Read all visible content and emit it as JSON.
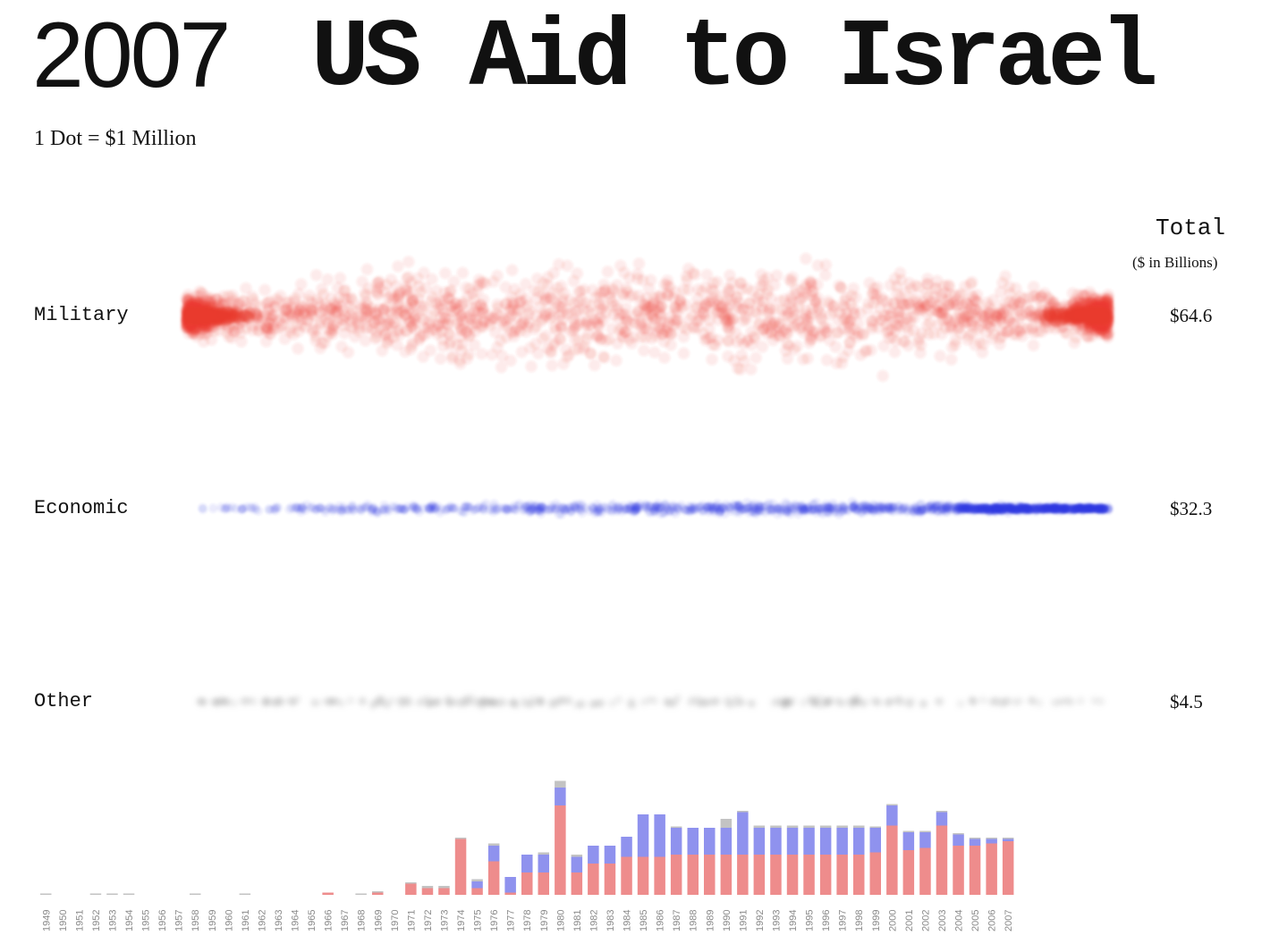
{
  "header": {
    "year": "2007",
    "title": "US Aid to Israel",
    "subtitle": "1 Dot = $1 Million"
  },
  "totals_header": {
    "label": "Total",
    "unit": "($ in Billions)"
  },
  "colors": {
    "military": "#e8392f",
    "economic": "#2d36e0",
    "other": "#8c8c8c",
    "bar_military": "#ee8c8c",
    "bar_economic": "#8f92ee",
    "bar_other": "#c3c3c3"
  },
  "chart_data": [
    {
      "type": "scatter",
      "title": "US Aid to Israel",
      "note": "1 Dot = $1 Million",
      "rows": [
        {
          "name": "Military",
          "total_label": "$64.6",
          "total": 64.6,
          "dots": 64600
        },
        {
          "name": "Economic",
          "total_label": "$32.3",
          "total": 32.3,
          "dots": 32300
        },
        {
          "name": "Other",
          "total_label": "$4.5",
          "total": 4.5,
          "dots": 4500
        }
      ]
    },
    {
      "type": "bar",
      "stacked": true,
      "categories": [
        "1949",
        "1950",
        "1951",
        "1952",
        "1953",
        "1954",
        "1955",
        "1956",
        "1957",
        "1958",
        "1959",
        "1960",
        "1961",
        "1962",
        "1963",
        "1964",
        "1965",
        "1966",
        "1967",
        "1968",
        "1969",
        "1970",
        "1971",
        "1972",
        "1973",
        "1974",
        "1975",
        "1976",
        "1977",
        "1978",
        "1979",
        "1980",
        "1981",
        "1982",
        "1983",
        "1984",
        "1985",
        "1986",
        "1987",
        "1988",
        "1989",
        "1990",
        "1991",
        "1992",
        "1993",
        "1994",
        "1995",
        "1996",
        "1997",
        "1998",
        "1999",
        "2000",
        "2001",
        "2002",
        "2003",
        "2004",
        "2005",
        "2006",
        "2007"
      ],
      "series": [
        {
          "name": "Military",
          "values": [
            0,
            0,
            0,
            0,
            0,
            0,
            0,
            0,
            0,
            0,
            0,
            0,
            0,
            0,
            0,
            0,
            0,
            0.1,
            0,
            0,
            0.1,
            0,
            0.5,
            0.3,
            0.3,
            2.5,
            0.3,
            1.5,
            0.1,
            1.0,
            1.0,
            4.0,
            1.0,
            1.4,
            1.4,
            1.7,
            1.7,
            1.7,
            1.8,
            1.8,
            1.8,
            1.8,
            1.8,
            1.8,
            1.8,
            1.8,
            1.8,
            1.8,
            1.8,
            1.8,
            1.9,
            3.1,
            2.0,
            2.1,
            3.1,
            2.2,
            2.2,
            2.3,
            2.4
          ]
        },
        {
          "name": "Economic",
          "values": [
            0,
            0,
            0,
            0,
            0,
            0,
            0,
            0,
            0,
            0,
            0,
            0,
            0,
            0,
            0,
            0,
            0,
            0,
            0,
            0,
            0,
            0,
            0,
            0,
            0,
            0,
            0.3,
            0.7,
            0.7,
            0.8,
            0.8,
            0.8,
            0.7,
            0.8,
            0.8,
            0.9,
            1.9,
            1.9,
            1.2,
            1.2,
            1.2,
            1.2,
            1.9,
            1.2,
            1.2,
            1.2,
            1.2,
            1.2,
            1.2,
            1.2,
            1.1,
            0.9,
            0.8,
            0.7,
            0.6,
            0.5,
            0.3,
            0.2,
            0.1
          ]
        },
        {
          "name": "Other",
          "values": [
            0.05,
            0,
            0,
            0.05,
            0.05,
            0.05,
            0,
            0,
            0,
            0.05,
            0,
            0,
            0.05,
            0,
            0,
            0,
            0,
            0,
            0,
            0.05,
            0.05,
            0,
            0.05,
            0.1,
            0.1,
            0.05,
            0.1,
            0.1,
            0,
            0,
            0.1,
            0.3,
            0.1,
            0,
            0,
            0,
            0,
            0,
            0.05,
            0,
            0,
            0.4,
            0.05,
            0.1,
            0.1,
            0.1,
            0.1,
            0.1,
            0.1,
            0.1,
            0.05,
            0.05,
            0.05,
            0.05,
            0.05,
            0.05,
            0.05,
            0.05,
            0.05
          ]
        }
      ],
      "ylim": [
        0,
        5.5
      ]
    }
  ]
}
